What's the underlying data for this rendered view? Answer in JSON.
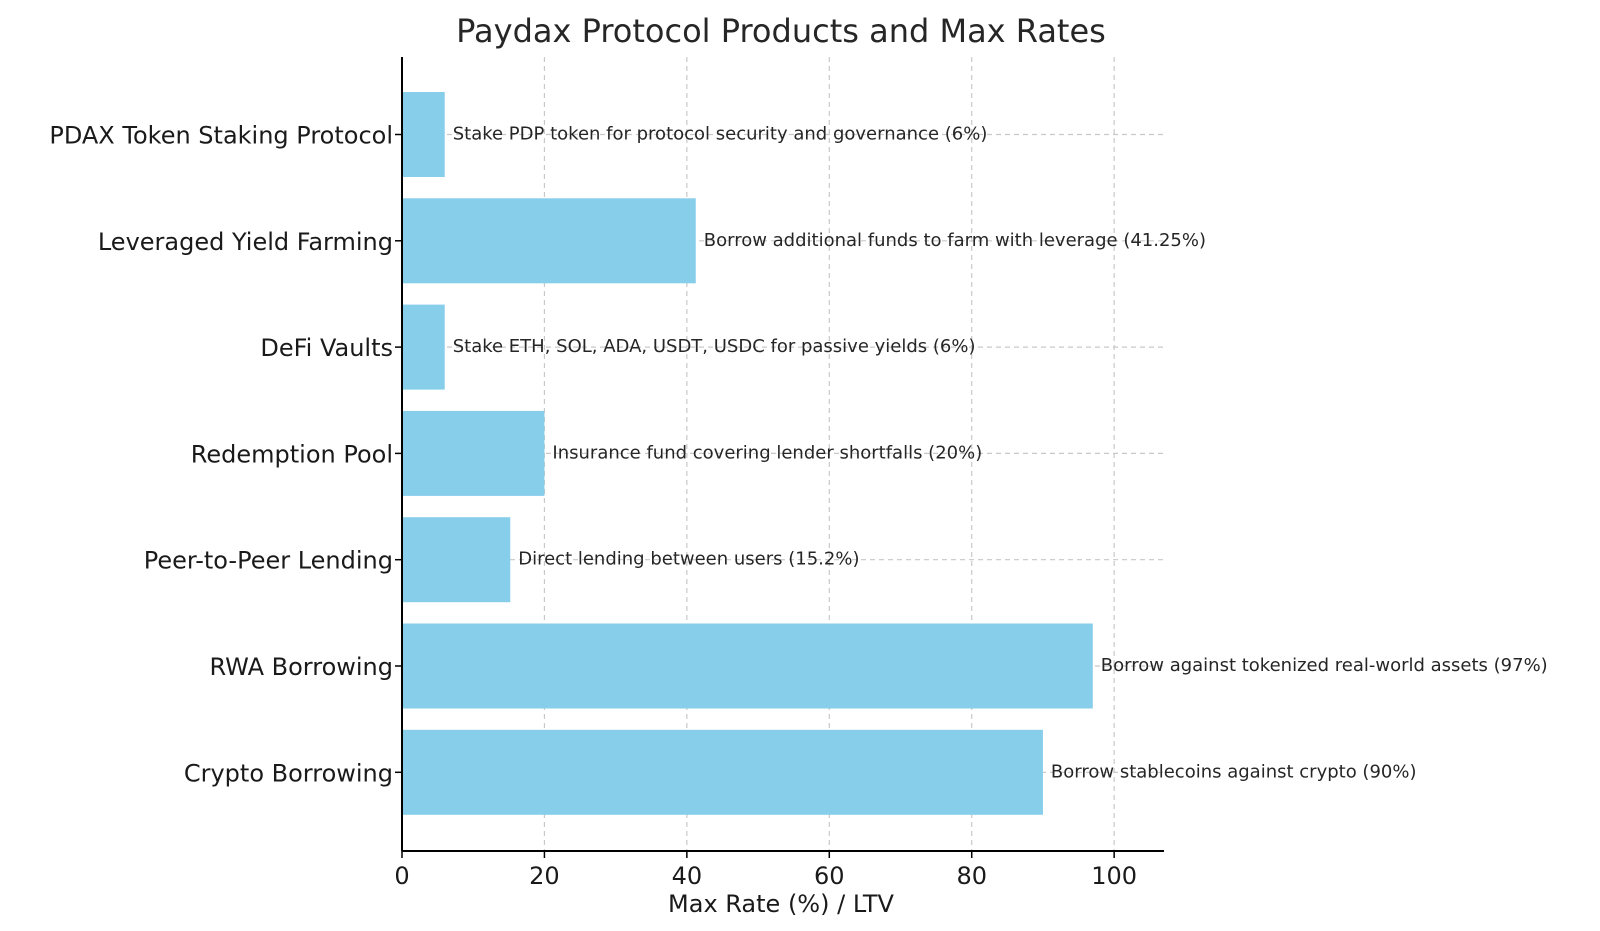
{
  "chart_data": {
    "type": "bar",
    "orientation": "horizontal",
    "title": "Paydax Protocol Products and Max Rates",
    "xlabel": "Max Rate (%) / LTV",
    "ylabel": "",
    "xlim": [
      0,
      107
    ],
    "xticks": [
      "0",
      "20",
      "40",
      "60",
      "80",
      "100"
    ],
    "grid": true,
    "categories": [
      "Crypto Borrowing",
      "RWA Borrowing",
      "Peer-to-Peer Lending",
      "Redemption Pool",
      "DeFi Vaults",
      "Leveraged Yield Farming",
      "PDAX Token Staking Protocol"
    ],
    "values": [
      90,
      97,
      15.2,
      20,
      6,
      41.25,
      6
    ],
    "annotations": [
      "Borrow stablecoins against crypto (90%)",
      "Borrow against tokenized real-world assets (97%)",
      "Direct lending between users (15.2%)",
      "Insurance fund covering lender shortfalls (20%)",
      "Stake ETH, SOL, ADA, USDT, USDC for passive yields (6%)",
      "Borrow additional funds to farm with leverage (41.25%)",
      "Stake PDP token for protocol security and governance (6%)"
    ],
    "bar_color": "#87ceeb"
  }
}
